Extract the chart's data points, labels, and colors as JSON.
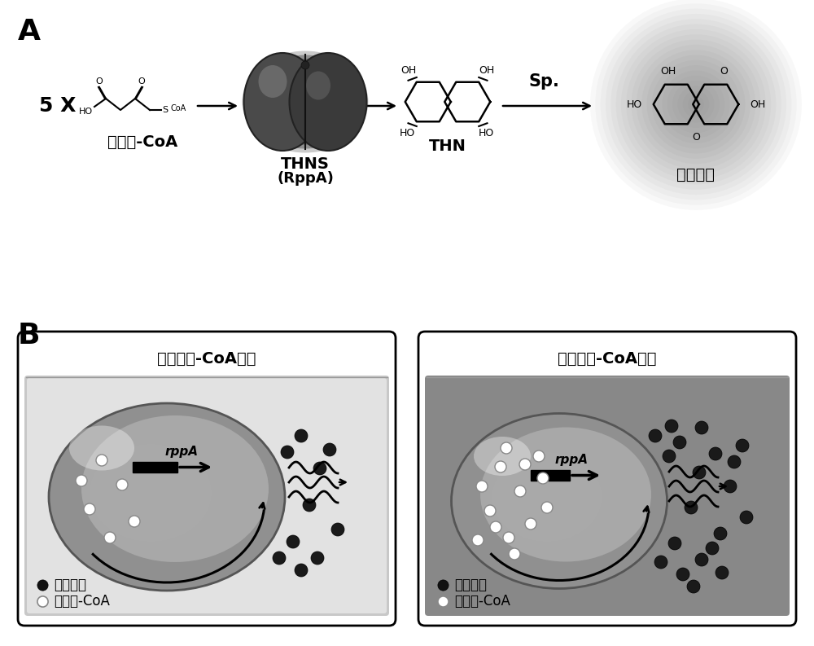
{
  "panel_A_label": "A",
  "panel_B_label": "B",
  "label_5x": "5 X",
  "label_malonyl": "丙二酰-CoA",
  "label_THNS": "THNS",
  "label_THNS2": "(RppA)",
  "label_THN": "THN",
  "label_flaviolin": "淡黄霨素",
  "label_sp": "Sp.",
  "box1_title": "低丙二酰-CoA水平",
  "box2_title": "高丙二酰-CoA水平",
  "legend_malonyl": "丙二酰-CoA",
  "legend_flaviolin": "淡黄霨素",
  "label_rppA": "rppA",
  "bg_color": "#ffffff"
}
